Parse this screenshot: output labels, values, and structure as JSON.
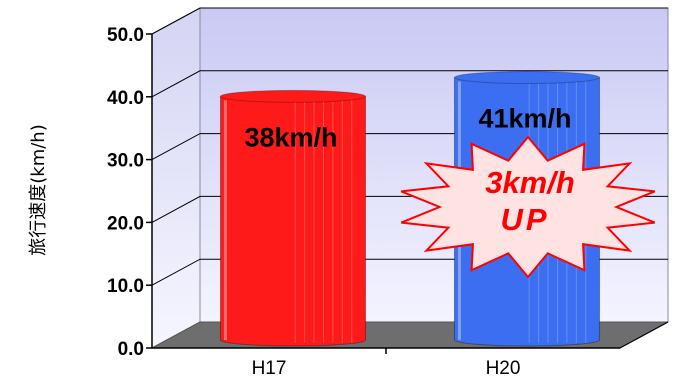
{
  "chart_data": {
    "type": "bar",
    "categories": [
      "H17",
      "H20"
    ],
    "values": [
      38,
      41
    ],
    "data_labels": [
      "38km/h",
      "41km/h"
    ],
    "ylabel": "旅行速度(km/h)",
    "ylim": [
      0,
      50
    ],
    "yticks": [
      "0.0",
      "10.0",
      "20.0",
      "30.0",
      "40.0",
      "50.0"
    ],
    "grid": true,
    "bar_colors": [
      "#ff1a1a",
      "#3b6ef0"
    ],
    "annotation": {
      "line1": "3km/h",
      "line2": "UP",
      "color": "#ff0000"
    }
  }
}
